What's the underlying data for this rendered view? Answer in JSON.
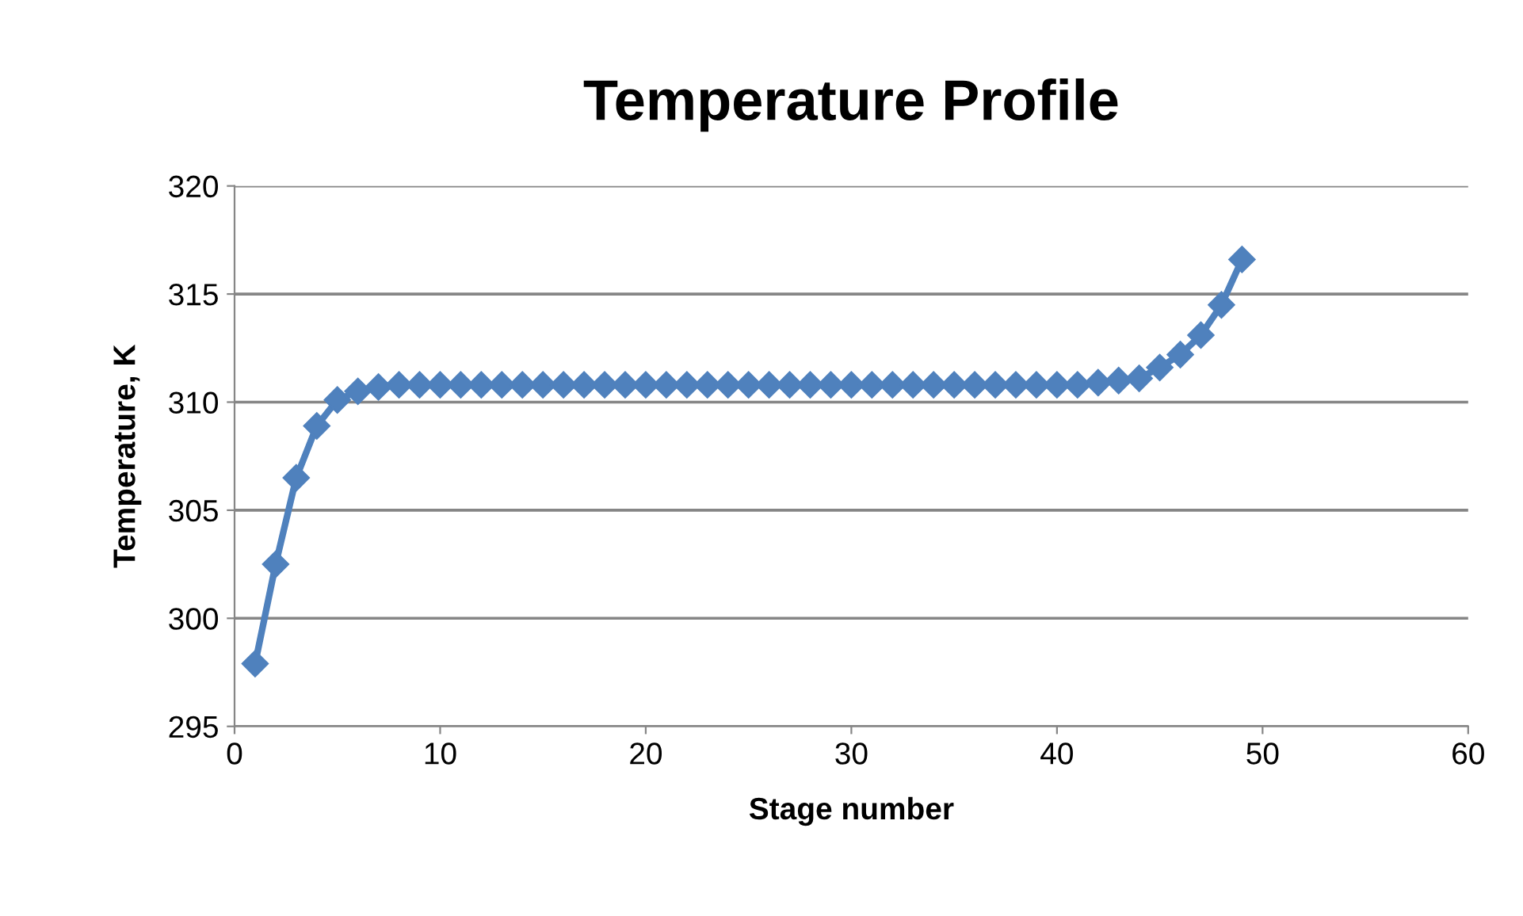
{
  "chart_data": {
    "type": "line",
    "title": "Temperature Profile",
    "xlabel": "Stage number",
    "ylabel": "Temperature, K",
    "x": [
      1,
      2,
      3,
      4,
      5,
      6,
      7,
      8,
      9,
      10,
      11,
      12,
      13,
      14,
      15,
      16,
      17,
      18,
      19,
      20,
      21,
      22,
      23,
      24,
      25,
      26,
      27,
      28,
      29,
      30,
      31,
      32,
      33,
      34,
      35,
      36,
      37,
      38,
      39,
      40,
      41,
      42,
      43,
      44,
      45,
      46,
      47,
      48,
      49
    ],
    "series": [
      {
        "color": "#4f81bd",
        "values": [
          297.9,
          302.5,
          306.5,
          308.9,
          310.1,
          310.5,
          310.7,
          310.8,
          310.8,
          310.8,
          310.8,
          310.8,
          310.8,
          310.8,
          310.8,
          310.8,
          310.8,
          310.8,
          310.8,
          310.8,
          310.8,
          310.8,
          310.8,
          310.8,
          310.8,
          310.8,
          310.8,
          310.8,
          310.8,
          310.8,
          310.8,
          310.8,
          310.8,
          310.8,
          310.8,
          310.8,
          310.8,
          310.8,
          310.8,
          310.8,
          310.8,
          310.9,
          311.0,
          311.1,
          311.6,
          312.2,
          313.1,
          314.5,
          316.6
        ]
      }
    ],
    "xlim": [
      0,
      60
    ],
    "xticks": [
      0,
      10,
      20,
      30,
      40,
      50,
      60
    ],
    "ylim": [
      295,
      320
    ],
    "yticks": [
      295,
      300,
      305,
      310,
      315,
      320
    ],
    "grid": "y",
    "marker": "diamond",
    "line_style": "solid",
    "legend": false
  }
}
